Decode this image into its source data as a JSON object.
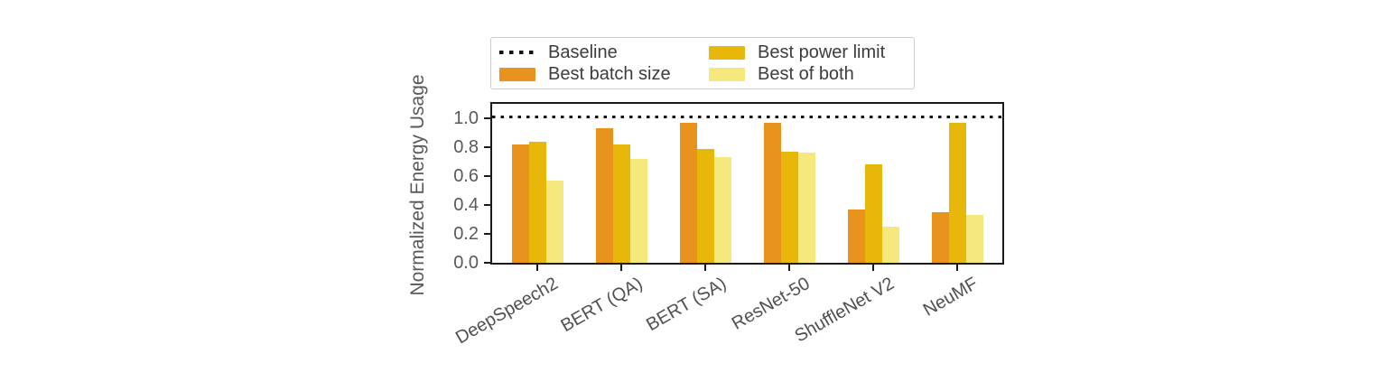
{
  "figure": {
    "ylabel": "Normalized Energy Usage",
    "colors": {
      "baseline": "#111111",
      "best_batch_size": "#E8931D",
      "best_power_limit": "#E7B70A",
      "best_of_both": "#F5E97E",
      "axis": "#1a1a1a",
      "tick_text": "#595959",
      "legend_border": "#cccccc"
    }
  },
  "legend": {
    "columns": [
      [
        {
          "label": "Baseline",
          "marker": "dotted-line",
          "color": "#111111"
        },
        {
          "label": "Best batch size",
          "marker": "swatch",
          "color": "#E8931D"
        }
      ],
      [
        {
          "label": "Best power limit",
          "marker": "swatch",
          "color": "#E7B70A"
        },
        {
          "label": "Best of both",
          "marker": "swatch",
          "color": "#F5E97E"
        }
      ]
    ]
  },
  "chart_data": {
    "type": "bar",
    "title": "",
    "xlabel": "",
    "ylabel": "Normalized Energy Usage",
    "categories": [
      "DeepSpeech2",
      "BERT (QA)",
      "BERT (SA)",
      "ResNet-50",
      "ShuffleNet V2",
      "NeuMF"
    ],
    "series": [
      {
        "name": "Best batch size",
        "color": "#E8931D",
        "values": [
          0.82,
          0.93,
          0.97,
          0.97,
          0.37,
          0.35
        ]
      },
      {
        "name": "Best power limit",
        "color": "#E7B70A",
        "values": [
          0.84,
          0.82,
          0.79,
          0.77,
          0.68,
          0.97
        ]
      },
      {
        "name": "Best of both",
        "color": "#F5E97E",
        "values": [
          0.57,
          0.72,
          0.73,
          0.76,
          0.25,
          0.33
        ]
      }
    ],
    "baseline": 1.0,
    "baseline_label": "Baseline",
    "ylim": [
      0.0,
      1.1
    ],
    "yticks": [
      "0.0",
      "0.2",
      "0.4",
      "0.6",
      "0.8",
      "1.0"
    ],
    "grid": false,
    "legend_position": "top, outside plot, 2 columns",
    "xtick_rotation_deg": 30
  }
}
